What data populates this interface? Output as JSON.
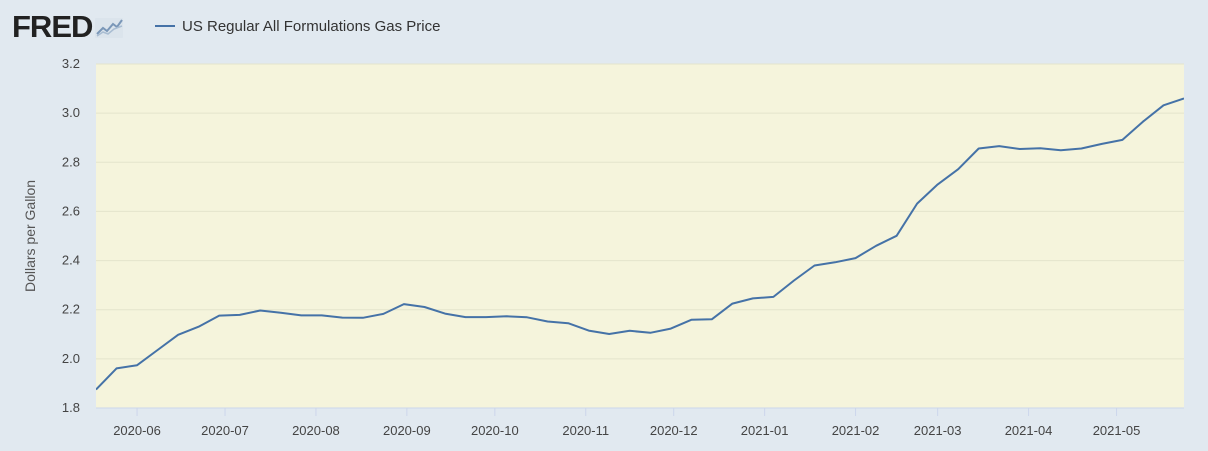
{
  "header": {
    "logo_text": "FRED",
    "logo_icon": "chart-line-icon"
  },
  "chart_data": {
    "type": "line",
    "title": "",
    "xlabel": "",
    "ylabel": "Dollars per Gallon",
    "ylim": [
      1.8,
      3.2
    ],
    "yticks": [
      "1.8",
      "2.0",
      "2.2",
      "2.4",
      "2.6",
      "2.8",
      "3.0",
      "3.2"
    ],
    "xlim": [
      "2020-05-18",
      "2021-05-24"
    ],
    "xticks": [
      "2020-06",
      "2020-07",
      "2020-08",
      "2020-09",
      "2020-10",
      "2020-11",
      "2020-12",
      "2021-01",
      "2021-02",
      "2021-03",
      "2021-04",
      "2021-05"
    ],
    "grid": "horizontal",
    "legend_position": "top-left",
    "plot_background": "#f5f4dc",
    "series": [
      {
        "name": "US Regular All Formulations Gas Price",
        "color": "#4572a7",
        "x": [
          "2020-05-18",
          "2020-05-25",
          "2020-06-01",
          "2020-06-08",
          "2020-06-15",
          "2020-06-22",
          "2020-06-29",
          "2020-07-06",
          "2020-07-13",
          "2020-07-20",
          "2020-07-27",
          "2020-08-03",
          "2020-08-10",
          "2020-08-17",
          "2020-08-24",
          "2020-08-31",
          "2020-09-07",
          "2020-09-14",
          "2020-09-21",
          "2020-09-28",
          "2020-10-05",
          "2020-10-12",
          "2020-10-19",
          "2020-10-26",
          "2020-11-02",
          "2020-11-09",
          "2020-11-16",
          "2020-11-23",
          "2020-11-30",
          "2020-12-07",
          "2020-12-14",
          "2020-12-21",
          "2020-12-28",
          "2021-01-04",
          "2021-01-11",
          "2021-01-18",
          "2021-01-25",
          "2021-02-01",
          "2021-02-08",
          "2021-02-15",
          "2021-02-22",
          "2021-03-01",
          "2021-03-08",
          "2021-03-15",
          "2021-03-22",
          "2021-03-29",
          "2021-04-05",
          "2021-04-12",
          "2021-04-19",
          "2021-04-26",
          "2021-05-03",
          "2021-05-10",
          "2021-05-17",
          "2021-05-24"
        ],
        "values": [
          1.875,
          1.961,
          1.974,
          2.036,
          2.098,
          2.131,
          2.176,
          2.179,
          2.197,
          2.188,
          2.177,
          2.177,
          2.168,
          2.167,
          2.183,
          2.223,
          2.211,
          2.184,
          2.17,
          2.17,
          2.173,
          2.169,
          2.152,
          2.145,
          2.115,
          2.101,
          2.114,
          2.106,
          2.123,
          2.159,
          2.161,
          2.225,
          2.246,
          2.252,
          2.319,
          2.38,
          2.393,
          2.41,
          2.46,
          2.501,
          2.632,
          2.71,
          2.772,
          2.856,
          2.866,
          2.854,
          2.857,
          2.849,
          2.856,
          2.875,
          2.891,
          2.965,
          3.032,
          3.06
        ]
      }
    ]
  }
}
